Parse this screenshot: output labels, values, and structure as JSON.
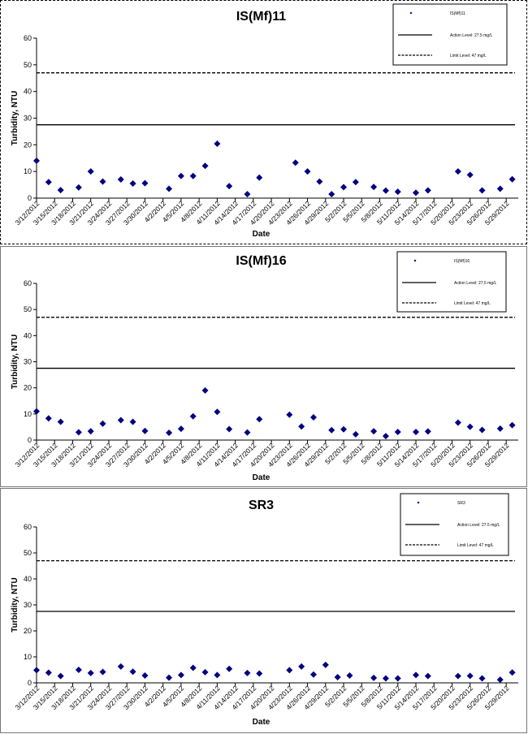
{
  "chart_data": [
    {
      "type": "scatter",
      "title": "IS(Mf)11",
      "xlabel": "Date",
      "ylabel": "Turbidity, NTU",
      "ylim": [
        0,
        60
      ],
      "yticks": [
        0,
        10,
        20,
        30,
        40,
        50,
        60
      ],
      "xticks": [
        "3/12/2012",
        "3/15/2012",
        "3/18/2012",
        "3/21/2012",
        "3/24/2012",
        "3/27/2012",
        "3/30/2012",
        "4/2/2012",
        "4/5/2012",
        "4/8/2012",
        "4/11/2012",
        "4/14/2012",
        "4/17/2012",
        "4/20/2012",
        "4/23/2012",
        "4/26/2012",
        "4/29/2012",
        "5/2/2012",
        "5/5/2012",
        "5/8/2012",
        "5/11/2012",
        "5/14/2012",
        "5/17/2012",
        "5/20/2012",
        "5/23/2012",
        "5/26/2012",
        "5/29/2012"
      ],
      "legend_position": "top-right",
      "series": [
        {
          "name": "IS(Mf)11",
          "color": "#000080",
          "x": [
            "3/12/2012",
            "3/14/2012",
            "3/16/2012",
            "3/19/2012",
            "3/21/2012",
            "3/23/2012",
            "3/26/2012",
            "3/28/2012",
            "3/30/2012",
            "4/3/2012",
            "4/5/2012",
            "4/7/2012",
            "4/9/2012",
            "4/11/2012",
            "4/13/2012",
            "4/16/2012",
            "4/18/2012",
            "4/24/2012",
            "4/26/2012",
            "4/28/2012",
            "4/30/2012",
            "5/2/2012",
            "5/4/2012",
            "5/7/2012",
            "5/9/2012",
            "5/11/2012",
            "5/14/2012",
            "5/16/2012",
            "5/21/2012",
            "5/23/2012",
            "5/25/2012",
            "5/28/2012",
            "5/30/2012"
          ],
          "y": [
            14,
            6,
            3,
            4,
            10,
            6.2,
            7,
            5.5,
            5.6,
            3.5,
            8.3,
            8.3,
            12.1,
            20.4,
            4.5,
            1.5,
            7.7,
            13.3,
            10,
            6.2,
            1.5,
            4.1,
            6,
            4.2,
            2.8,
            2.4,
            2,
            2.9,
            10,
            8.7,
            2.9,
            3.5,
            7.1
          ]
        },
        {
          "name": "Action Level: 27.5 mg/L",
          "line": "solid",
          "value": 27.5
        },
        {
          "name": "Limit Level: 47 mg/L",
          "line": "dashed",
          "value": 47
        }
      ]
    },
    {
      "type": "scatter",
      "title": "IS(Mf)16",
      "xlabel": "Date",
      "ylabel": "Turbidity, NTU",
      "ylim": [
        0,
        60
      ],
      "yticks": [
        0,
        10,
        20,
        30,
        40,
        50,
        60
      ],
      "xticks": [
        "3/12/2012",
        "3/15/2012",
        "3/18/2012",
        "3/21/2012",
        "3/24/2012",
        "3/27/2012",
        "3/30/2012",
        "4/2/2012",
        "4/5/2012",
        "4/8/2012",
        "4/11/2012",
        "4/14/2012",
        "4/17/2012",
        "4/20/2012",
        "4/23/2012",
        "4/26/2012",
        "4/29/2012",
        "5/2/2012",
        "5/5/2012",
        "5/8/2012",
        "5/11/2012",
        "5/14/2012",
        "5/17/2012",
        "5/20/2012",
        "5/23/2012",
        "5/26/2012",
        "5/29/2012"
      ],
      "legend_position": "top-right",
      "series": [
        {
          "name": "IS(Mf)16",
          "color": "#000080",
          "x": [
            "3/12/2012",
            "3/14/2012",
            "3/16/2012",
            "3/19/2012",
            "3/21/2012",
            "3/23/2012",
            "3/26/2012",
            "3/28/2012",
            "3/30/2012",
            "4/3/2012",
            "4/5/2012",
            "4/7/2012",
            "4/9/2012",
            "4/11/2012",
            "4/13/2012",
            "4/16/2012",
            "4/18/2012",
            "4/23/2012",
            "4/25/2012",
            "4/27/2012",
            "4/30/2012",
            "5/2/2012",
            "5/4/2012",
            "5/7/2012",
            "5/9/2012",
            "5/11/2012",
            "5/14/2012",
            "5/16/2012",
            "5/21/2012",
            "5/23/2012",
            "5/25/2012",
            "5/28/2012",
            "5/30/2012"
          ],
          "y": [
            11,
            8.3,
            7,
            3,
            3.4,
            6.3,
            7.6,
            7,
            3.5,
            2.8,
            4.3,
            9.1,
            19,
            10.8,
            4.2,
            2.9,
            8,
            9.7,
            5.2,
            8.7,
            3.8,
            4.1,
            2.2,
            3.4,
            1.5,
            3.1,
            3.1,
            3.3,
            6.7,
            5.1,
            3.9,
            4.4,
            5.7
          ]
        },
        {
          "name": "Action Level: 27.5 mg/L",
          "line": "solid",
          "value": 27.5
        },
        {
          "name": "Limit Level: 47 mg/L",
          "line": "dashed",
          "value": 47
        }
      ]
    },
    {
      "type": "scatter",
      "title": "SR3",
      "xlabel": "Date",
      "ylabel": "Turbidity, NTU",
      "ylim": [
        0,
        60
      ],
      "yticks": [
        0,
        10,
        20,
        30,
        40,
        50,
        60
      ],
      "xticks": [
        "3/12/2012",
        "3/15/2012",
        "3/18/2012",
        "3/21/2012",
        "3/24/2012",
        "3/27/2012",
        "3/30/2012",
        "4/2/2012",
        "4/5/2012",
        "4/8/2012",
        "4/11/2012",
        "4/14/2012",
        "4/17/2012",
        "4/20/2012",
        "4/23/2012",
        "4/26/2012",
        "4/29/2012",
        "5/2/2012",
        "5/5/2012",
        "5/8/2012",
        "5/11/2012",
        "5/14/2012",
        "5/17/2012",
        "5/20/2012",
        "5/23/2012",
        "5/26/2012",
        "5/29/2012"
      ],
      "legend_position": "top-right",
      "series": [
        {
          "name": "SR3",
          "color": "#000080",
          "x": [
            "3/12/2012",
            "3/14/2012",
            "3/16/2012",
            "3/19/2012",
            "3/21/2012",
            "3/23/2012",
            "3/26/2012",
            "3/28/2012",
            "3/30/2012",
            "4/3/2012",
            "4/5/2012",
            "4/7/2012",
            "4/9/2012",
            "4/11/2012",
            "4/13/2012",
            "4/16/2012",
            "4/18/2012",
            "4/23/2012",
            "4/25/2012",
            "4/27/2012",
            "4/29/2012",
            "5/1/2012",
            "5/3/2012",
            "5/7/2012",
            "5/9/2012",
            "5/11/2012",
            "5/14/2012",
            "5/16/2012",
            "5/21/2012",
            "5/23/2012",
            "5/25/2012",
            "5/28/2012",
            "5/30/2012"
          ],
          "y": [
            4.9,
            3.9,
            2.6,
            5,
            3.8,
            4.2,
            6.3,
            4.3,
            2.8,
            2,
            3,
            5.8,
            4.1,
            3,
            5.4,
            3.8,
            3.6,
            4.9,
            6.3,
            3.2,
            6.9,
            2.2,
            2.8,
            1.9,
            1.7,
            1.7,
            3,
            2.6,
            2.6,
            2.7,
            1.7,
            1.2,
            4
          ]
        },
        {
          "name": "Action Level: 27.5 mg/L",
          "line": "solid",
          "value": 27.5
        },
        {
          "name": "Limit Level: 47 mg/L",
          "line": "dashed",
          "value": 47
        }
      ]
    }
  ]
}
